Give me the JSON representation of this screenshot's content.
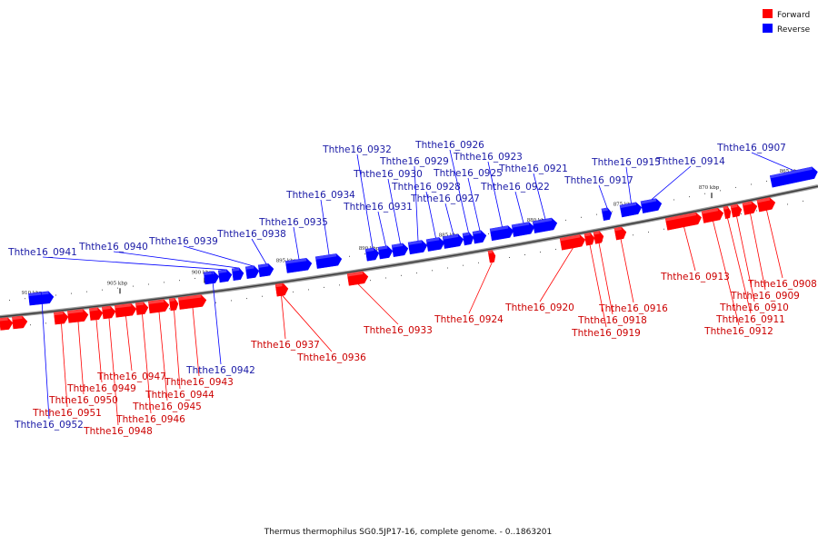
{
  "legend": {
    "forward": {
      "label": "Forward",
      "color": "#ff0000"
    },
    "reverse": {
      "label": "Reverse",
      "color": "#0000ff"
    }
  },
  "caption": "Thermus thermophilus SG0.5JP17-16, complete genome. - 0..1863201",
  "scale_labels": [
    "865 kbp",
    "870 kbp",
    "875 kbp",
    "880 kbp",
    "885 kbp",
    "890 kbp",
    "895 kbp",
    "900 kbp",
    "905 kbp",
    "910 kbp"
  ],
  "genes": [
    {
      "label": "Ththe16_0907",
      "strand": "reverse"
    },
    {
      "label": "Ththe16_0908",
      "strand": "forward"
    },
    {
      "label": "Ththe16_0909",
      "strand": "forward"
    },
    {
      "label": "Ththe16_0910",
      "strand": "forward"
    },
    {
      "label": "Ththe16_0911",
      "strand": "forward"
    },
    {
      "label": "Ththe16_0912",
      "strand": "forward"
    },
    {
      "label": "Ththe16_0913",
      "strand": "forward"
    },
    {
      "label": "Ththe16_0914",
      "strand": "reverse"
    },
    {
      "label": "Ththe16_0915",
      "strand": "reverse"
    },
    {
      "label": "Ththe16_0916",
      "strand": "forward"
    },
    {
      "label": "Ththe16_0917",
      "strand": "reverse"
    },
    {
      "label": "Ththe16_0918",
      "strand": "forward"
    },
    {
      "label": "Ththe16_0919",
      "strand": "forward"
    },
    {
      "label": "Ththe16_0920",
      "strand": "forward"
    },
    {
      "label": "Ththe16_0921",
      "strand": "reverse"
    },
    {
      "label": "Ththe16_0922",
      "strand": "reverse"
    },
    {
      "label": "Ththe16_0923",
      "strand": "reverse"
    },
    {
      "label": "Ththe16_0924",
      "strand": "forward"
    },
    {
      "label": "Ththe16_0925",
      "strand": "reverse"
    },
    {
      "label": "Ththe16_0926",
      "strand": "reverse"
    },
    {
      "label": "Ththe16_0927",
      "strand": "reverse"
    },
    {
      "label": "Ththe16_0928",
      "strand": "reverse"
    },
    {
      "label": "Ththe16_0929",
      "strand": "reverse"
    },
    {
      "label": "Ththe16_0930",
      "strand": "reverse"
    },
    {
      "label": "Ththe16_0931",
      "strand": "reverse"
    },
    {
      "label": "Ththe16_0932",
      "strand": "reverse"
    },
    {
      "label": "Ththe16_0933",
      "strand": "forward"
    },
    {
      "label": "Ththe16_0934",
      "strand": "reverse"
    },
    {
      "label": "Ththe16_0935",
      "strand": "reverse"
    },
    {
      "label": "Ththe16_0936",
      "strand": "forward"
    },
    {
      "label": "Ththe16_0937",
      "strand": "forward"
    },
    {
      "label": "Ththe16_0938",
      "strand": "reverse"
    },
    {
      "label": "Ththe16_0939",
      "strand": "reverse"
    },
    {
      "label": "Ththe16_0940",
      "strand": "reverse"
    },
    {
      "label": "Ththe16_0941",
      "strand": "reverse"
    },
    {
      "label": "Ththe16_0942",
      "strand": "reverse"
    },
    {
      "label": "Ththe16_0943",
      "strand": "forward"
    },
    {
      "label": "Ththe16_0944",
      "strand": "forward"
    },
    {
      "label": "Ththe16_0945",
      "strand": "forward"
    },
    {
      "label": "Ththe16_0946",
      "strand": "forward"
    },
    {
      "label": "Ththe16_0947",
      "strand": "forward"
    },
    {
      "label": "Ththe16_0948",
      "strand": "forward"
    },
    {
      "label": "Ththe16_0949",
      "strand": "forward"
    },
    {
      "label": "Ththe16_0950",
      "strand": "forward"
    },
    {
      "label": "Ththe16_0951",
      "strand": "forward"
    },
    {
      "label": "Ththe16_0952",
      "strand": "reverse"
    }
  ]
}
